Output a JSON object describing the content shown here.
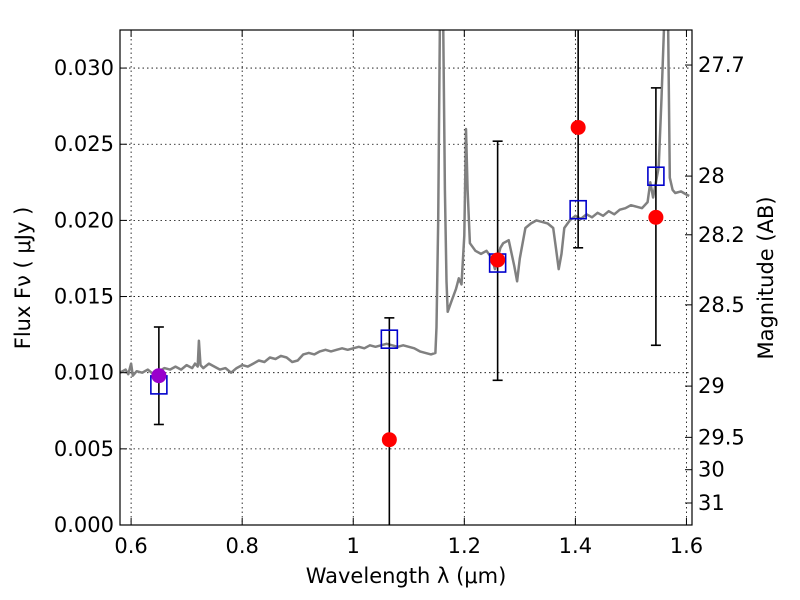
{
  "chart_data": {
    "type": "scatter",
    "xlabel": "Wavelength  λ (μm)",
    "ylabel": "Flux  Fν  ( μJy )",
    "y2label": "Magnitude (AB)",
    "xlim": [
      0.58,
      1.61
    ],
    "ylim": [
      0.0,
      0.0325
    ],
    "grid": true,
    "x_ticks": [
      {
        "value": 0.6,
        "label": "0.6"
      },
      {
        "value": 0.8,
        "label": "0.8"
      },
      {
        "value": 1.0,
        "label": "1"
      },
      {
        "value": 1.2,
        "label": "1.2"
      },
      {
        "value": 1.4,
        "label": "1.4"
      },
      {
        "value": 1.6,
        "label": "1.6"
      }
    ],
    "y_ticks": [
      {
        "value": 0.0,
        "label": "0.000"
      },
      {
        "value": 0.005,
        "label": "0.005"
      },
      {
        "value": 0.01,
        "label": "0.010"
      },
      {
        "value": 0.015,
        "label": "0.015"
      },
      {
        "value": 0.02,
        "label": "0.020"
      },
      {
        "value": 0.025,
        "label": "0.025"
      },
      {
        "value": 0.03,
        "label": "0.030"
      }
    ],
    "mag_ticks": [
      {
        "mag": 27.7,
        "label": "27.7"
      },
      {
        "mag": 28.0,
        "label": "28"
      },
      {
        "mag": 28.2,
        "label": "28.2"
      },
      {
        "mag": 28.5,
        "label": "28.5"
      },
      {
        "mag": 29.0,
        "label": "29"
      },
      {
        "mag": 29.5,
        "label": "29.5"
      },
      {
        "mag": 30.0,
        "label": "30"
      },
      {
        "mag": 31.0,
        "label": "31"
      }
    ],
    "series": [
      {
        "kind": "model_spectrum",
        "color": "#808080",
        "points": [
          [
            0.58,
            0.01
          ],
          [
            0.59,
            0.0102
          ],
          [
            0.595,
            0.0099
          ],
          [
            0.6,
            0.0106
          ],
          [
            0.603,
            0.0098
          ],
          [
            0.61,
            0.0101
          ],
          [
            0.62,
            0.01
          ],
          [
            0.63,
            0.0102
          ],
          [
            0.64,
            0.0099
          ],
          [
            0.65,
            0.0101
          ],
          [
            0.66,
            0.0103
          ],
          [
            0.67,
            0.0102
          ],
          [
            0.68,
            0.0104
          ],
          [
            0.69,
            0.0102
          ],
          [
            0.7,
            0.0105
          ],
          [
            0.71,
            0.0103
          ],
          [
            0.715,
            0.0106
          ],
          [
            0.72,
            0.0104
          ],
          [
            0.722,
            0.0121
          ],
          [
            0.725,
            0.0105
          ],
          [
            0.73,
            0.0103
          ],
          [
            0.74,
            0.0106
          ],
          [
            0.75,
            0.0104
          ],
          [
            0.76,
            0.0102
          ],
          [
            0.77,
            0.0103
          ],
          [
            0.78,
            0.01
          ],
          [
            0.79,
            0.0103
          ],
          [
            0.8,
            0.0105
          ],
          [
            0.81,
            0.0104
          ],
          [
            0.82,
            0.0106
          ],
          [
            0.83,
            0.0108
          ],
          [
            0.84,
            0.0107
          ],
          [
            0.85,
            0.011
          ],
          [
            0.86,
            0.0109
          ],
          [
            0.87,
            0.0111
          ],
          [
            0.88,
            0.011
          ],
          [
            0.89,
            0.0107
          ],
          [
            0.9,
            0.0108
          ],
          [
            0.91,
            0.0112
          ],
          [
            0.92,
            0.0113
          ],
          [
            0.93,
            0.0112
          ],
          [
            0.94,
            0.0114
          ],
          [
            0.95,
            0.0115
          ],
          [
            0.96,
            0.0114
          ],
          [
            0.97,
            0.0115
          ],
          [
            0.98,
            0.0116
          ],
          [
            0.99,
            0.0115
          ],
          [
            1.0,
            0.0116
          ],
          [
            1.01,
            0.0117
          ],
          [
            1.02,
            0.0116
          ],
          [
            1.03,
            0.0118
          ],
          [
            1.04,
            0.0117
          ],
          [
            1.05,
            0.0118
          ],
          [
            1.06,
            0.0119
          ],
          [
            1.07,
            0.0118
          ],
          [
            1.08,
            0.0117
          ],
          [
            1.09,
            0.0118
          ],
          [
            1.1,
            0.0117
          ],
          [
            1.11,
            0.0116
          ],
          [
            1.12,
            0.0114
          ],
          [
            1.13,
            0.0113
          ],
          [
            1.14,
            0.0112
          ],
          [
            1.148,
            0.0113
          ],
          [
            1.15,
            0.013
          ],
          [
            1.153,
            0.02
          ],
          [
            1.156,
            0.033
          ],
          [
            1.162,
            0.033
          ],
          [
            1.165,
            0.022
          ],
          [
            1.168,
            0.016
          ],
          [
            1.17,
            0.014
          ],
          [
            1.175,
            0.0145
          ],
          [
            1.18,
            0.015
          ],
          [
            1.185,
            0.0155
          ],
          [
            1.19,
            0.0162
          ],
          [
            1.195,
            0.0158
          ],
          [
            1.2,
            0.019
          ],
          [
            1.203,
            0.026
          ],
          [
            1.206,
            0.022
          ],
          [
            1.21,
            0.0185
          ],
          [
            1.22,
            0.018
          ],
          [
            1.23,
            0.0178
          ],
          [
            1.24,
            0.018
          ],
          [
            1.25,
            0.0175
          ],
          [
            1.255,
            0.0168
          ],
          [
            1.26,
            0.0175
          ],
          [
            1.265,
            0.0182
          ],
          [
            1.27,
            0.0185
          ],
          [
            1.28,
            0.0187
          ],
          [
            1.29,
            0.017
          ],
          [
            1.295,
            0.016
          ],
          [
            1.3,
            0.0175
          ],
          [
            1.31,
            0.0195
          ],
          [
            1.32,
            0.0198
          ],
          [
            1.33,
            0.02
          ],
          [
            1.34,
            0.0199
          ],
          [
            1.35,
            0.0198
          ],
          [
            1.36,
            0.0195
          ],
          [
            1.365,
            0.0182
          ],
          [
            1.37,
            0.0168
          ],
          [
            1.375,
            0.0178
          ],
          [
            1.38,
            0.0195
          ],
          [
            1.39,
            0.02
          ],
          [
            1.4,
            0.0203
          ],
          [
            1.41,
            0.0201
          ],
          [
            1.42,
            0.0204
          ],
          [
            1.43,
            0.0202
          ],
          [
            1.44,
            0.0205
          ],
          [
            1.45,
            0.0203
          ],
          [
            1.46,
            0.0206
          ],
          [
            1.47,
            0.0204
          ],
          [
            1.48,
            0.0207
          ],
          [
            1.49,
            0.0208
          ],
          [
            1.5,
            0.021
          ],
          [
            1.51,
            0.0209
          ],
          [
            1.52,
            0.0208
          ],
          [
            1.53,
            0.0212
          ],
          [
            1.535,
            0.0225
          ],
          [
            1.54,
            0.0215
          ],
          [
            1.545,
            0.0225
          ],
          [
            1.55,
            0.0235
          ],
          [
            1.555,
            0.028
          ],
          [
            1.56,
            0.033
          ],
          [
            1.567,
            0.033
          ],
          [
            1.57,
            0.0228
          ],
          [
            1.575,
            0.022
          ],
          [
            1.58,
            0.0218
          ],
          [
            1.59,
            0.0219
          ],
          [
            1.6,
            0.0217
          ],
          [
            1.605,
            0.0216
          ]
        ]
      },
      {
        "kind": "model_photometry",
        "color": "#0000cc",
        "x": [
          0.65,
          1.065,
          1.26,
          1.405,
          1.545
        ],
        "y": [
          0.0092,
          0.0122,
          0.0172,
          0.0207,
          0.0229
        ]
      },
      {
        "kind": "observed",
        "color": "#ff0000",
        "x": [
          1.065,
          1.26,
          1.405,
          1.545
        ],
        "y": [
          0.0056,
          0.0174,
          0.0261,
          0.0202
        ],
        "yerr_low": [
          0.008,
          0.0079,
          0.0079,
          0.0084
        ],
        "yerr_high": [
          0.008,
          0.0078,
          0.0079,
          0.0085
        ]
      },
      {
        "kind": "observed_alt",
        "color": "#9900cc",
        "x": [
          0.65
        ],
        "y": [
          0.0098
        ],
        "yerr_low": [
          0.0032
        ],
        "yerr_high": [
          0.0032
        ]
      }
    ]
  }
}
